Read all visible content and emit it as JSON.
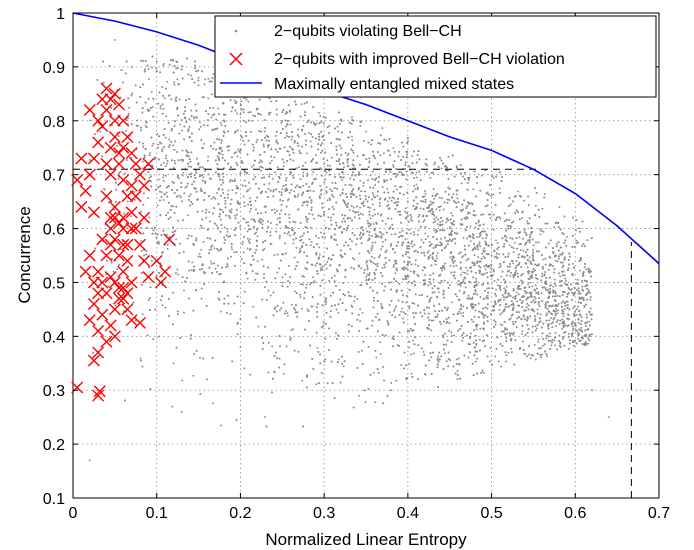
{
  "chart_data": {
    "type": "scatter",
    "xlabel": "Normalized Linear Entropy",
    "ylabel": "Concurrence",
    "xlim": [
      0,
      0.7
    ],
    "ylim": [
      0.1,
      1
    ],
    "xticks": [
      0,
      0.1,
      0.2,
      0.3,
      0.4,
      0.5,
      0.6,
      0.7
    ],
    "xtick_labels": [
      "0",
      "0.1",
      "0.2",
      "0.3",
      "0.4",
      "0.5",
      "0.6",
      "0.7"
    ],
    "yticks": [
      0.1,
      0.2,
      0.3,
      0.4,
      0.5,
      0.6,
      0.7,
      0.8,
      0.9,
      1
    ],
    "ytick_labels": [
      "0.1",
      "0.2",
      "0.3",
      "0.4",
      "0.5",
      "0.6",
      "0.7",
      "0.8",
      "0.9",
      "1"
    ],
    "grid": true,
    "legend_position": "top-right",
    "series": [
      {
        "name": "2−qubits violating Bell−CH",
        "marker": "dot",
        "color": "#8c8c8c",
        "approx_points": [
          [
            0.02,
            0.17
          ],
          [
            0.03,
            0.3
          ],
          [
            0.05,
            0.95
          ],
          [
            0.07,
            0.9
          ],
          [
            0.1,
            0.91
          ],
          [
            0.12,
            0.35
          ],
          [
            0.15,
            0.88
          ],
          [
            0.18,
            0.5
          ],
          [
            0.2,
            0.85
          ],
          [
            0.22,
            0.6
          ],
          [
            0.25,
            0.8
          ],
          [
            0.28,
            0.45
          ],
          [
            0.3,
            0.72
          ],
          [
            0.32,
            0.55
          ],
          [
            0.35,
            0.78
          ],
          [
            0.38,
            0.5
          ],
          [
            0.4,
            0.65
          ],
          [
            0.42,
            0.55
          ],
          [
            0.45,
            0.6
          ],
          [
            0.48,
            0.5
          ],
          [
            0.5,
            0.55
          ],
          [
            0.52,
            0.48
          ],
          [
            0.55,
            0.52
          ],
          [
            0.58,
            0.46
          ],
          [
            0.6,
            0.42
          ],
          [
            0.62,
            0.3
          ],
          [
            0.64,
            0.25
          ],
          [
            0.13,
            0.26
          ],
          [
            0.16,
            0.32
          ],
          [
            0.2,
            0.38
          ]
        ]
      },
      {
        "name": "2−qubits with improved Bell−CH violation",
        "marker": "x",
        "color": "#ff0000",
        "points": [
          [
            0.005,
            0.305
          ],
          [
            0.03,
            0.29
          ],
          [
            0.032,
            0.298
          ],
          [
            0.025,
            0.355
          ],
          [
            0.03,
            0.37
          ],
          [
            0.02,
            0.43
          ],
          [
            0.025,
            0.46
          ],
          [
            0.03,
            0.41
          ],
          [
            0.035,
            0.44
          ],
          [
            0.04,
            0.39
          ],
          [
            0.045,
            0.42
          ],
          [
            0.05,
            0.4
          ],
          [
            0.055,
            0.47
          ],
          [
            0.06,
            0.49
          ],
          [
            0.065,
            0.45
          ],
          [
            0.07,
            0.43
          ],
          [
            0.08,
            0.425
          ],
          [
            0.05,
            0.5
          ],
          [
            0.06,
            0.52
          ],
          [
            0.055,
            0.55
          ],
          [
            0.065,
            0.57
          ],
          [
            0.07,
            0.6
          ],
          [
            0.06,
            0.62
          ],
          [
            0.05,
            0.64
          ],
          [
            0.045,
            0.6
          ],
          [
            0.04,
            0.55
          ],
          [
            0.035,
            0.58
          ],
          [
            0.03,
            0.52
          ],
          [
            0.025,
            0.5
          ],
          [
            0.02,
            0.55
          ],
          [
            0.015,
            0.52
          ],
          [
            0.01,
            0.64
          ],
          [
            0.015,
            0.67
          ],
          [
            0.02,
            0.7
          ],
          [
            0.025,
            0.73
          ],
          [
            0.03,
            0.76
          ],
          [
            0.035,
            0.79
          ],
          [
            0.04,
            0.82
          ],
          [
            0.045,
            0.84
          ],
          [
            0.05,
            0.85
          ],
          [
            0.055,
            0.83
          ],
          [
            0.06,
            0.8
          ],
          [
            0.065,
            0.77
          ],
          [
            0.07,
            0.74
          ],
          [
            0.075,
            0.72
          ],
          [
            0.08,
            0.7
          ],
          [
            0.085,
            0.68
          ],
          [
            0.09,
            0.72
          ],
          [
            0.04,
            0.86
          ],
          [
            0.035,
            0.84
          ],
          [
            0.03,
            0.8
          ],
          [
            0.02,
            0.82
          ],
          [
            0.01,
            0.73
          ],
          [
            0.005,
            0.69
          ],
          [
            0.025,
            0.63
          ],
          [
            0.045,
            0.7
          ],
          [
            0.055,
            0.74
          ],
          [
            0.06,
            0.69
          ],
          [
            0.065,
            0.66
          ],
          [
            0.07,
            0.63
          ],
          [
            0.075,
            0.6
          ],
          [
            0.08,
            0.57
          ],
          [
            0.085,
            0.54
          ],
          [
            0.09,
            0.51
          ],
          [
            0.1,
            0.54
          ],
          [
            0.11,
            0.52
          ],
          [
            0.115,
            0.58
          ],
          [
            0.105,
            0.5
          ],
          [
            0.05,
            0.77
          ],
          [
            0.055,
            0.72
          ],
          [
            0.04,
            0.66
          ],
          [
            0.045,
            0.62
          ],
          [
            0.05,
            0.58
          ],
          [
            0.055,
            0.61
          ],
          [
            0.06,
            0.57
          ],
          [
            0.065,
            0.54
          ],
          [
            0.07,
            0.5
          ],
          [
            0.05,
            0.45
          ],
          [
            0.06,
            0.47
          ],
          [
            0.04,
            0.48
          ],
          [
            0.035,
            0.5
          ],
          [
            0.03,
            0.48
          ],
          [
            0.045,
            0.51
          ],
          [
            0.055,
            0.49
          ],
          [
            0.065,
            0.48
          ],
          [
            0.04,
            0.72
          ],
          [
            0.045,
            0.75
          ],
          [
            0.05,
            0.8
          ],
          [
            0.06,
            0.75
          ],
          [
            0.07,
            0.68
          ],
          [
            0.075,
            0.66
          ],
          [
            0.085,
            0.62
          ],
          [
            0.06,
            0.6
          ],
          [
            0.05,
            0.62
          ],
          [
            0.045,
            0.57
          ]
        ]
      },
      {
        "name": "Maximally entangled mixed states",
        "marker": "line",
        "color": "#0000ff",
        "points": [
          [
            0.0,
            1.0
          ],
          [
            0.05,
            0.985
          ],
          [
            0.1,
            0.965
          ],
          [
            0.15,
            0.94
          ],
          [
            0.2,
            0.91
          ],
          [
            0.25,
            0.885
          ],
          [
            0.3,
            0.855
          ],
          [
            0.35,
            0.83
          ],
          [
            0.4,
            0.8
          ],
          [
            0.45,
            0.77
          ],
          [
            0.5,
            0.745
          ],
          [
            0.55,
            0.71
          ],
          [
            0.6,
            0.665
          ],
          [
            0.65,
            0.605
          ],
          [
            0.7,
            0.535
          ]
        ]
      }
    ],
    "reference_lines": [
      {
        "orientation": "horizontal",
        "y": 0.71,
        "x_range": [
          0,
          0.555
        ],
        "style": "dashed",
        "color": "#000000"
      },
      {
        "orientation": "vertical",
        "x": 0.667,
        "y_range": [
          0.1,
          0.575
        ],
        "style": "dashed",
        "color": "#000000"
      }
    ]
  }
}
